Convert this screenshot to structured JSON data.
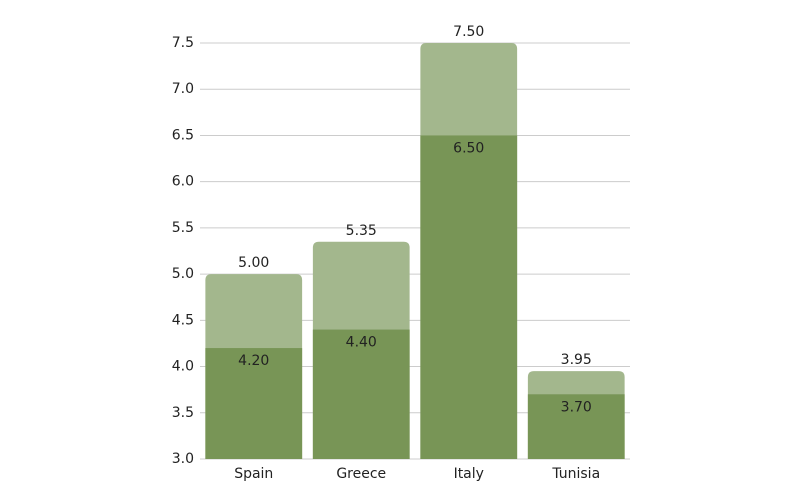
{
  "chart_data": {
    "type": "bar",
    "categories": [
      "Spain",
      "Greece",
      "Italy",
      "Tunisia"
    ],
    "series": [
      {
        "color": "#a3b78d",
        "values": [
          5.0,
          5.35,
          7.5,
          3.95
        ],
        "value_labels": [
          "5.00",
          "5.35",
          "7.50",
          "3.95"
        ]
      },
      {
        "color": "#789556",
        "values": [
          4.2,
          4.4,
          6.5,
          3.7
        ],
        "value_labels": [
          "4.20",
          "4.40",
          "6.50",
          "3.70"
        ]
      }
    ],
    "ylim": [
      3.0,
      7.5
    ],
    "yticks": [
      {
        "value": 3,
        "label": "3.0"
      },
      3.5,
      {
        "value": 4,
        "label": "4.0"
      },
      4.5,
      {
        "value": 5,
        "label": "5.0"
      },
      5.5,
      {
        "value": 6,
        "label": "6.0"
      },
      6.5,
      {
        "value": 7,
        "label": "7.0"
      },
      7.5
    ],
    "grid": true
  }
}
